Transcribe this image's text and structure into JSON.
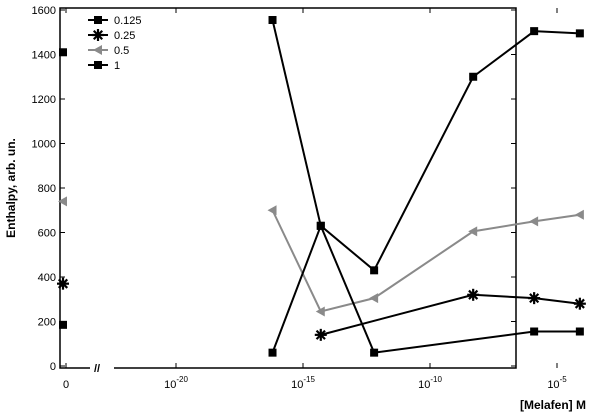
{
  "chart_data": {
    "type": "line",
    "xlabel": "[Melafen] M",
    "ylabel": "Enthalpy, arb. un.",
    "x_scale": "log10",
    "x_ticks": [
      {
        "label": "0",
        "value": null
      },
      {
        "label": "10",
        "exp": "-20",
        "value": -20
      },
      {
        "label": "10",
        "exp": "-15",
        "value": -15
      },
      {
        "label": "10",
        "exp": "-10",
        "value": -10
      },
      {
        "label": "10",
        "exp": "-5",
        "value": -5
      }
    ],
    "axis_break": "//",
    "ylim": [
      0,
      1600
    ],
    "y_ticks": [
      0,
      200,
      400,
      600,
      800,
      1000,
      1200,
      1400,
      1600
    ],
    "legend_position": "top-left",
    "zero_points": [
      {
        "series": "0.125",
        "y": 1410
      },
      {
        "series": "0.25",
        "y": 370
      },
      {
        "series": "0.5",
        "y": 740
      },
      {
        "series": "1",
        "y": 185
      }
    ],
    "series": [
      {
        "name": "0.125",
        "color": "#000000",
        "marker": "square",
        "points": [
          [
            -16.2,
            1555
          ],
          [
            -14.3,
            630
          ],
          [
            -12.2,
            430
          ],
          [
            -8.3,
            1300
          ],
          [
            -5.9,
            1505
          ],
          [
            -4.1,
            1495
          ]
        ]
      },
      {
        "name": "0.25",
        "color": "#000000",
        "marker": "star",
        "points": [
          [
            -14.3,
            140
          ],
          [
            -8.3,
            320
          ],
          [
            -5.9,
            305
          ],
          [
            -4.1,
            280
          ]
        ]
      },
      {
        "name": "0.5",
        "color": "#8a8a8a",
        "marker": "triangle",
        "points": [
          [
            -16.2,
            700
          ],
          [
            -14.3,
            245
          ],
          [
            -12.2,
            305
          ],
          [
            -8.3,
            605
          ],
          [
            -5.9,
            650
          ],
          [
            -4.1,
            680
          ]
        ]
      },
      {
        "name": "1",
        "color": "#000000",
        "marker": "square",
        "points": [
          [
            -16.2,
            60
          ],
          [
            -14.3,
            630
          ],
          [
            -12.2,
            60
          ],
          [
            -5.9,
            155
          ],
          [
            -4.1,
            155
          ]
        ]
      }
    ]
  }
}
